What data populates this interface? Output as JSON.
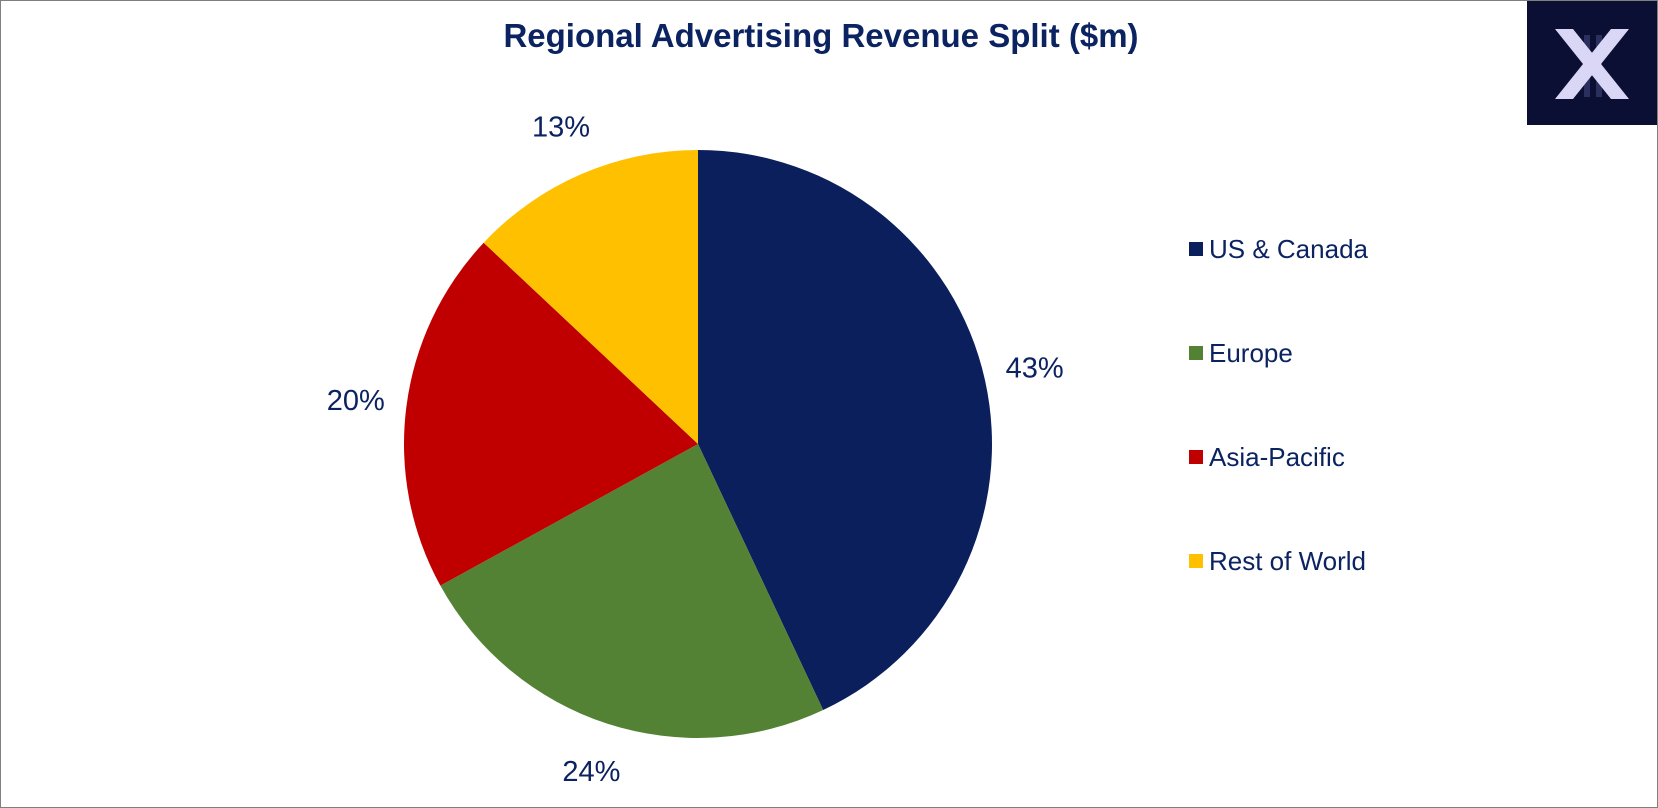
{
  "chart_data": {
    "type": "pie",
    "title": "Regional Advertising Revenue Split ($m)",
    "slices": [
      {
        "name": "US & Canada",
        "value": 43,
        "label": "43%",
        "color": "#0b1f5c"
      },
      {
        "name": "Europe",
        "value": 24,
        "label": "24%",
        "color": "#548235"
      },
      {
        "name": "Asia-Pacific",
        "value": 20,
        "label": "20%",
        "color": "#c00000"
      },
      {
        "name": "Rest of World",
        "value": 13,
        "label": "13%",
        "color": "#ffc000"
      }
    ],
    "start": "12 o'clock",
    "direction": "clockwise",
    "legend_position": "right",
    "data_labels": "outside"
  },
  "logo": {
    "icon": "x-logo-icon",
    "background": "#0b0f34",
    "color": "#d9d7f5"
  }
}
